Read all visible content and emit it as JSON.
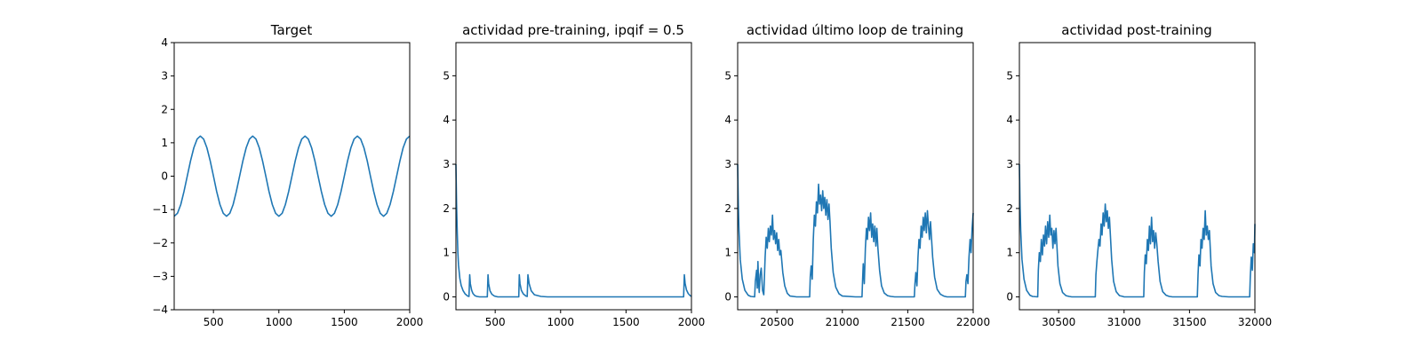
{
  "chart_data": [
    {
      "type": "line",
      "title": "Target",
      "xlim": [
        200,
        2000
      ],
      "ylim": [
        -4,
        4
      ],
      "xticks": [
        500,
        1000,
        1500,
        2000
      ],
      "yticks": [
        -4,
        -3,
        -2,
        -1,
        0,
        1,
        2,
        3,
        4
      ],
      "xlabel": "",
      "ylabel": "",
      "grid": false,
      "series": [
        {
          "color": "#1f77b4",
          "x": [
            200,
            225,
            250,
            275,
            300,
            325,
            350,
            375,
            400,
            425,
            450,
            475,
            500,
            525,
            550,
            575,
            600,
            625,
            650,
            675,
            700,
            725,
            750,
            775,
            800,
            825,
            850,
            875,
            900,
            925,
            950,
            975,
            1000,
            1025,
            1050,
            1075,
            1100,
            1125,
            1150,
            1175,
            1200,
            1225,
            1250,
            1275,
            1300,
            1325,
            1350,
            1375,
            1400,
            1425,
            1450,
            1475,
            1500,
            1525,
            1550,
            1575,
            1600,
            1625,
            1650,
            1675,
            1700,
            1725,
            1750,
            1775,
            1800,
            1825,
            1850,
            1875,
            1900,
            1925,
            1950,
            1975,
            2000
          ],
          "y": [
            -1.2,
            -1.11,
            -0.85,
            -0.46,
            0,
            0.46,
            0.85,
            1.11,
            1.2,
            1.11,
            0.85,
            0.46,
            0,
            -0.46,
            -0.85,
            -1.11,
            -1.2,
            -1.11,
            -0.85,
            -0.46,
            0,
            0.46,
            0.85,
            1.11,
            1.2,
            1.11,
            0.85,
            0.46,
            0,
            -0.46,
            -0.85,
            -1.11,
            -1.2,
            -1.11,
            -0.85,
            -0.46,
            0,
            0.46,
            0.85,
            1.11,
            1.2,
            1.11,
            0.85,
            0.46,
            0,
            -0.46,
            -0.85,
            -1.11,
            -1.2,
            -1.11,
            -0.85,
            -0.46,
            0,
            0.46,
            0.85,
            1.11,
            1.2,
            1.11,
            0.85,
            0.46,
            0,
            -0.46,
            -0.85,
            -1.11,
            -1.2,
            -1.11,
            -0.85,
            -0.46,
            0,
            0.46,
            0.85,
            1.11,
            1.2
          ]
        }
      ]
    },
    {
      "type": "line",
      "title": "actividad pre-training, ipqif = 0.5",
      "xlim": [
        200,
        2000
      ],
      "ylim": [
        -0.29,
        5.75
      ],
      "xticks": [
        500,
        1000,
        1500,
        2000
      ],
      "yticks": [
        0,
        1,
        2,
        3,
        4,
        5
      ],
      "xlabel": "",
      "ylabel": "",
      "grid": false,
      "series": [
        {
          "color": "#1f77b4",
          "x": [
            200,
            205,
            210,
            215,
            220,
            230,
            240,
            255,
            270,
            290,
            300,
            305,
            310,
            320,
            330,
            345,
            360,
            380,
            400,
            440,
            445,
            450,
            460,
            475,
            495,
            520,
            600,
            680,
            684,
            690,
            700,
            715,
            735,
            745,
            750,
            760,
            775,
            800,
            850,
            900,
            1000,
            1200,
            1400,
            1600,
            1800,
            1940,
            1946,
            1952,
            1962,
            1975,
            1990,
            2000
          ],
          "y": [
            3.0,
            2.1,
            1.45,
            1.0,
            0.72,
            0.42,
            0.26,
            0.14,
            0.07,
            0.02,
            0.01,
            0.5,
            0.3,
            0.15,
            0.08,
            0.03,
            0.01,
            0.0,
            0.0,
            0.0,
            0.5,
            0.3,
            0.14,
            0.06,
            0.02,
            0.0,
            0.0,
            0.0,
            0.5,
            0.3,
            0.15,
            0.07,
            0.02,
            0.01,
            0.5,
            0.3,
            0.14,
            0.05,
            0.01,
            0.0,
            0.0,
            0.0,
            0.0,
            0.0,
            0.0,
            0.0,
            0.5,
            0.3,
            0.16,
            0.08,
            0.03,
            0.01
          ]
        }
      ]
    },
    {
      "type": "line",
      "title": "actividad último loop de training",
      "xlim": [
        20200,
        22000
      ],
      "ylim": [
        -0.29,
        5.75
      ],
      "xticks": [
        20500,
        21000,
        21500,
        22000
      ],
      "yticks": [
        0,
        1,
        2,
        3,
        4,
        5
      ],
      "xlabel": "",
      "ylabel": "",
      "grid": false,
      "series": [
        {
          "color": "#1f77b4",
          "x": [
            20200,
            20205,
            20210,
            20220,
            20235,
            20255,
            20280,
            20300,
            20330,
            20335,
            20345,
            20350,
            20355,
            20360,
            20365,
            20372,
            20380,
            20390,
            20400,
            20410,
            20418,
            20426,
            20434,
            20442,
            20450,
            20458,
            20466,
            20474,
            20482,
            20490,
            20498,
            20506,
            20514,
            20522,
            20530,
            20545,
            20560,
            20580,
            20600,
            20650,
            20700,
            20750,
            20755,
            20762,
            20770,
            20778,
            20786,
            20794,
            20802,
            20810,
            20818,
            20826,
            20834,
            20842,
            20850,
            20858,
            20866,
            20874,
            20882,
            20890,
            20898,
            20906,
            20915,
            20930,
            20950,
            20975,
            21000,
            21100,
            21150,
            21155,
            21160,
            21168,
            21176,
            21184,
            21192,
            21200,
            21208,
            21216,
            21224,
            21232,
            21240,
            21248,
            21256,
            21264,
            21272,
            21285,
            21300,
            21320,
            21345,
            21370,
            21400,
            21550,
            21555,
            21562,
            21570,
            21578,
            21586,
            21594,
            21602,
            21610,
            21618,
            21626,
            21634,
            21642,
            21650,
            21658,
            21666,
            21674,
            21690,
            21705,
            21725,
            21750,
            21775,
            21800,
            21900,
            21940,
            21945,
            21952,
            21960,
            21968,
            21976,
            21984,
            21992,
            22000
          ],
          "y": [
            3.0,
            2.1,
            1.5,
            0.85,
            0.4,
            0.15,
            0.04,
            0.01,
            0.0,
            0.35,
            0.6,
            0.2,
            0.8,
            0.3,
            0.1,
            0.5,
            0.65,
            0.15,
            0.05,
            0.9,
            1.35,
            1.1,
            1.55,
            1.25,
            1.6,
            1.4,
            1.85,
            1.3,
            1.5,
            1.2,
            1.45,
            1.05,
            1.3,
            0.95,
            1.05,
            0.55,
            0.25,
            0.08,
            0.02,
            0.0,
            0.0,
            0.0,
            0.45,
            0.7,
            0.4,
            1.3,
            1.85,
            1.6,
            2.15,
            1.9,
            2.55,
            2.1,
            2.3,
            1.95,
            2.4,
            2.0,
            2.25,
            1.85,
            2.2,
            1.75,
            2.1,
            1.7,
            1.1,
            0.55,
            0.22,
            0.07,
            0.02,
            0.0,
            0.0,
            0.4,
            0.75,
            0.3,
            1.1,
            1.55,
            1.3,
            1.8,
            1.5,
            1.9,
            1.35,
            1.65,
            1.25,
            1.6,
            1.15,
            1.55,
            1.1,
            0.6,
            0.25,
            0.09,
            0.03,
            0.01,
            0.0,
            0.0,
            0.3,
            0.55,
            0.25,
            0.9,
            1.3,
            1.1,
            1.6,
            1.35,
            1.8,
            1.5,
            1.9,
            1.45,
            1.95,
            1.6,
            1.3,
            1.7,
            0.9,
            0.45,
            0.17,
            0.06,
            0.02,
            0.0,
            0.0,
            0.0,
            0.35,
            0.5,
            0.3,
            0.9,
            1.3,
            1.0,
            1.55,
            1.9
          ]
        }
      ]
    },
    {
      "type": "line",
      "title": "actividad post-training",
      "xlim": [
        30200,
        32000
      ],
      "ylim": [
        -0.29,
        5.75
      ],
      "xticks": [
        30500,
        31000,
        31500,
        32000
      ],
      "yticks": [
        0,
        1,
        2,
        3,
        4,
        5
      ],
      "xlabel": "",
      "ylabel": "",
      "grid": false,
      "series": [
        {
          "color": "#1f77b4",
          "x": [
            30200,
            30205,
            30210,
            30220,
            30235,
            30255,
            30280,
            30300,
            30340,
            30345,
            30352,
            30360,
            30368,
            30376,
            30384,
            30392,
            30400,
            30408,
            30416,
            30424,
            30432,
            30440,
            30448,
            30456,
            30464,
            30472,
            30480,
            30495,
            30510,
            30530,
            30555,
            30580,
            30600,
            30700,
            30780,
            30785,
            30792,
            30800,
            30808,
            30816,
            30824,
            30832,
            30840,
            30848,
            30856,
            30864,
            30872,
            30880,
            30888,
            30896,
            30905,
            30920,
            30940,
            30965,
            30990,
            31000,
            31100,
            31150,
            31155,
            31162,
            31170,
            31178,
            31186,
            31194,
            31202,
            31210,
            31218,
            31226,
            31234,
            31242,
            31250,
            31260,
            31275,
            31295,
            31320,
            31345,
            31370,
            31400,
            31500,
            31560,
            31565,
            31572,
            31580,
            31588,
            31596,
            31604,
            31612,
            31620,
            31628,
            31636,
            31644,
            31652,
            31665,
            31680,
            31700,
            31725,
            31750,
            31800,
            31900,
            31960,
            31965,
            31972,
            31980,
            31988,
            31996,
            32000
          ],
          "y": [
            3.0,
            2.1,
            1.5,
            0.85,
            0.4,
            0.15,
            0.04,
            0.01,
            0.0,
            0.6,
            1.0,
            0.8,
            1.3,
            0.95,
            1.4,
            1.15,
            1.6,
            1.2,
            1.7,
            1.35,
            1.85,
            1.4,
            1.55,
            1.1,
            1.5,
            1.2,
            1.55,
            0.7,
            0.3,
            0.1,
            0.03,
            0.01,
            0.0,
            0.0,
            0.0,
            0.5,
            0.8,
            1.05,
            1.3,
            1.15,
            1.65,
            1.4,
            1.9,
            1.6,
            2.1,
            1.7,
            1.95,
            1.55,
            1.8,
            1.35,
            0.85,
            0.35,
            0.12,
            0.03,
            0.01,
            0.0,
            0.0,
            0.0,
            0.55,
            0.95,
            0.75,
            1.3,
            1.05,
            1.6,
            1.2,
            1.8,
            1.25,
            1.5,
            1.1,
            1.45,
            1.2,
            0.8,
            0.35,
            0.12,
            0.04,
            0.01,
            0.0,
            0.0,
            0.0,
            0.0,
            0.5,
            0.95,
            0.7,
            1.3,
            1.1,
            1.55,
            1.3,
            1.95,
            1.4,
            1.6,
            1.3,
            1.5,
            0.7,
            0.3,
            0.1,
            0.03,
            0.01,
            0.0,
            0.0,
            0.0,
            0.45,
            0.9,
            0.6,
            1.2,
            1.0,
            1.65
          ]
        }
      ]
    }
  ]
}
